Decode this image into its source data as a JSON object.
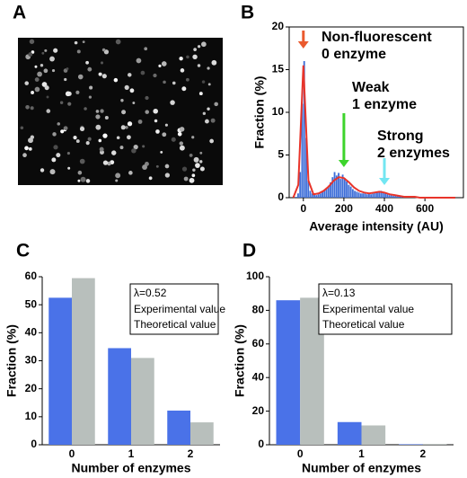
{
  "image_panel": {
    "label": "A"
  },
  "chart_data": [
    {
      "type": "histogram",
      "panel": "B",
      "ylabel": "Fraction (%)",
      "xlabel": "Average intensity (AU)",
      "color": "#3f6fd8",
      "bins": [
        -50,
        -40,
        -30,
        -20,
        -10,
        0,
        10,
        20,
        30,
        40,
        50,
        60,
        70,
        80,
        90,
        100,
        110,
        120,
        130,
        140,
        150,
        160,
        170,
        180,
        190,
        200,
        210,
        220,
        230,
        240,
        250,
        260,
        270,
        280,
        290,
        300,
        310,
        320,
        330,
        340,
        350,
        360,
        370,
        380,
        390,
        400,
        410,
        420,
        430,
        440,
        450,
        460,
        470,
        480,
        490,
        500,
        510,
        520,
        530,
        540,
        550,
        560,
        570,
        580,
        590,
        600,
        610,
        620,
        630,
        640,
        650,
        660,
        670,
        680,
        690,
        700,
        710,
        720,
        730,
        740,
        750
      ],
      "values": [
        0,
        0.1,
        0.5,
        3,
        11,
        16,
        7,
        2,
        0.8,
        0.5,
        0.4,
        0.3,
        0.4,
        0.5,
        0.7,
        0.9,
        1.1,
        1.4,
        1.8,
        2.4,
        3.0,
        2.6,
        2.9,
        2.2,
        2.7,
        2.3,
        1.9,
        1.5,
        1.3,
        1.0,
        0.8,
        0.7,
        0.6,
        0.5,
        0.5,
        0.5,
        0.4,
        0.5,
        0.4,
        0.5,
        0.6,
        0.7,
        0.6,
        0.8,
        0.6,
        0.5,
        0.4,
        0.3,
        0.3,
        0.2,
        0.2,
        0.2,
        0.2,
        0.1,
        0.1,
        0.1,
        0.1,
        0.1,
        0.1,
        0.1,
        0.1,
        0.1,
        0,
        0.1,
        0,
        0.1,
        0,
        0,
        0.1,
        0,
        0,
        0,
        0.1,
        0,
        0,
        0,
        0,
        0,
        0,
        0
      ],
      "fit": {
        "color": "#e8342a",
        "x": [
          -50,
          -25,
          0,
          25,
          50,
          75,
          100,
          125,
          150,
          175,
          200,
          225,
          250,
          275,
          300,
          325,
          350,
          375,
          400,
          425,
          450,
          475,
          500,
          525,
          550,
          575,
          600,
          625,
          650,
          675,
          700,
          725,
          750
        ],
        "values": [
          0,
          1.5,
          15.5,
          2,
          0.4,
          0.5,
          0.8,
          1.3,
          2,
          2.4,
          2.3,
          1.8,
          1.2,
          0.8,
          0.6,
          0.5,
          0.6,
          0.7,
          0.6,
          0.4,
          0.3,
          0.2,
          0.1,
          0.1,
          0.1,
          0,
          0,
          0,
          0,
          0,
          0,
          0,
          0
        ]
      },
      "xlim": [
        -70,
        790
      ],
      "xticks": [
        0,
        200,
        400,
        600
      ],
      "ylim": [
        0,
        20
      ],
      "yticks": [
        0,
        5,
        10,
        15,
        20
      ],
      "annotations": [
        {
          "lines": [
            "Non-fluorescent",
            "0 enzyme"
          ],
          "color": "#ea5a2e"
        },
        {
          "lines": [
            "Weak",
            "1 enzyme"
          ],
          "color": "#3dd42c"
        },
        {
          "lines": [
            "Strong",
            "2 enzymes"
          ],
          "color": "#72e6f2"
        }
      ]
    },
    {
      "type": "grouped_bar",
      "panel": "C",
      "ylabel": "Fraction (%)",
      "xlabel": "Number of enzymes",
      "categories": [
        "0",
        "1",
        "2"
      ],
      "series": [
        {
          "name": "Experimental value",
          "color": "#4a72e8",
          "values": [
            52.5,
            34.5,
            12.2
          ]
        },
        {
          "name": "Theoretical value",
          "color": "#b8bfbc",
          "values": [
            59.5,
            31,
            8
          ]
        }
      ],
      "legend_title": "λ=0.52",
      "ylim": [
        0,
        60
      ],
      "yticks": [
        0,
        10,
        20,
        30,
        40,
        50,
        60
      ]
    },
    {
      "type": "grouped_bar",
      "panel": "D",
      "ylabel": "Fraction (%)",
      "xlabel": "Number of enzymes",
      "categories": [
        "0",
        "1",
        "2"
      ],
      "series": [
        {
          "name": "Experimental value",
          "color": "#4a72e8",
          "values": [
            86,
            13.5,
            0.3
          ]
        },
        {
          "name": "Theoretical value",
          "color": "#b8bfbc",
          "values": [
            87.5,
            11.5,
            0.5
          ]
        }
      ],
      "legend_title": "λ=0.13",
      "ylim": [
        0,
        100
      ],
      "yticks": [
        0,
        20,
        40,
        60,
        80,
        100
      ]
    }
  ]
}
